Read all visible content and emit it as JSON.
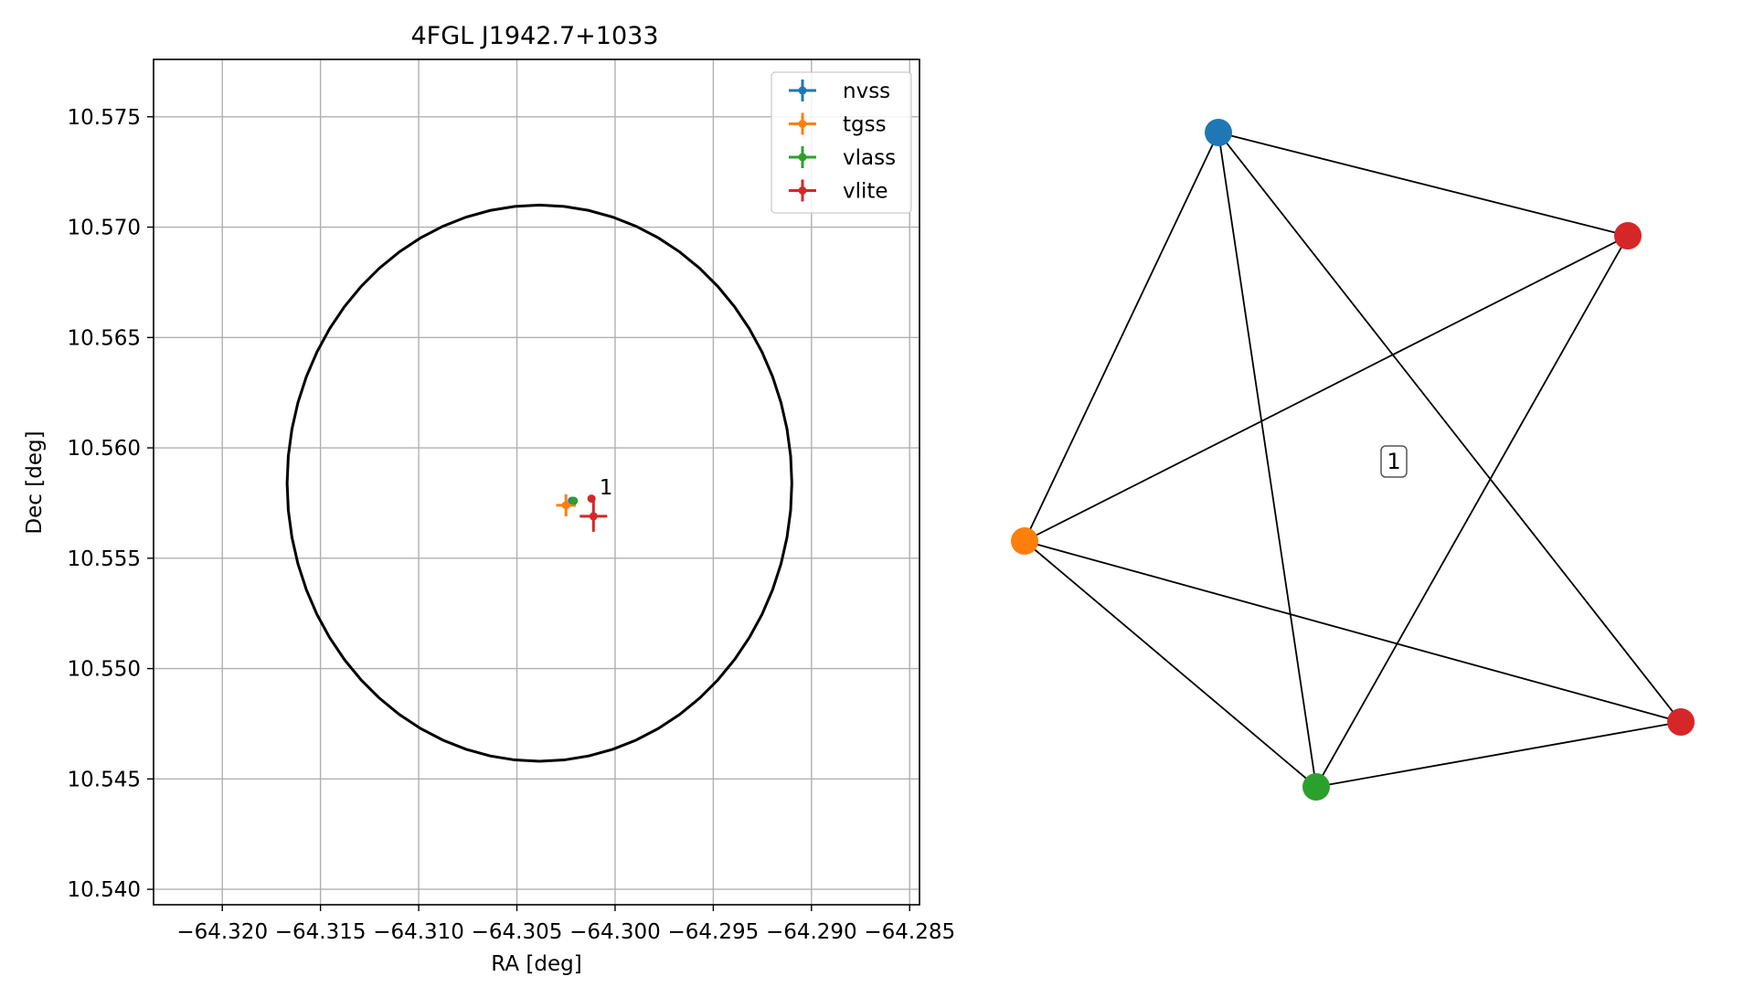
{
  "chart_data": [
    {
      "type": "scatter",
      "title": "4FGL J1942.7+1033",
      "xlabel": "RA [deg]",
      "ylabel": "Dec [deg]",
      "xlim": [
        -64.3235,
        -64.2845
      ],
      "ylim": [
        10.5393,
        10.5776
      ],
      "xticks": [
        -64.32,
        -64.315,
        -64.31,
        -64.305,
        -64.3,
        -64.295,
        -64.29,
        -64.285
      ],
      "xtick_labels": [
        "−64.320",
        "−64.315",
        "−64.310",
        "−64.305",
        "−64.300",
        "−64.295",
        "−64.290",
        "−64.285"
      ],
      "yticks": [
        10.54,
        10.545,
        10.55,
        10.555,
        10.56,
        10.565,
        10.57,
        10.575
      ],
      "ytick_labels": [
        "10.540",
        "10.545",
        "10.550",
        "10.555",
        "10.560",
        "10.565",
        "10.570",
        "10.575"
      ],
      "grid": true,
      "legend_position": "top-right",
      "ellipse": {
        "center_x": -64.30385,
        "center_y": 10.5584,
        "semi_x": 0.01285,
        "semi_y": 0.0126,
        "color": "#000000"
      },
      "series": [
        {
          "name": "nvss",
          "color": "#1f77b4",
          "x": -64.3022,
          "y": 10.5576,
          "xerr": 0.0001,
          "yerr": 0.0001
        },
        {
          "name": "tgss",
          "color": "#ff7f0e",
          "x": -64.3025,
          "y": 10.5574,
          "xerr": 0.0005,
          "yerr": 0.0005
        },
        {
          "name": "vlass",
          "color": "#2ca02c",
          "x": -64.3021,
          "y": 10.5576,
          "xerr": 0.0001,
          "yerr": 0.0001
        },
        {
          "name": "vlite",
          "color": "#d62728",
          "x": -64.3011,
          "y": 10.5569,
          "xerr": 0.0007,
          "yerr": 0.0007
        }
      ],
      "extra_points": [
        {
          "x": -64.3012,
          "y": 10.5577,
          "color": "#d62728"
        }
      ],
      "annotations": [
        {
          "text": "1",
          "x": -64.3008,
          "y": 10.5579
        }
      ]
    },
    {
      "type": "network",
      "nodes": [
        {
          "id": "nvss",
          "color": "#1f77b4"
        },
        {
          "id": "vlite_a",
          "color": "#d62728"
        },
        {
          "id": "tgss",
          "color": "#ff7f0e"
        },
        {
          "id": "vlite_b",
          "color": "#d62728"
        },
        {
          "id": "vlass",
          "color": "#2ca02c"
        }
      ],
      "edges": [
        [
          "nvss",
          "vlite_a"
        ],
        [
          "nvss",
          "tgss"
        ],
        [
          "nvss",
          "vlass"
        ],
        [
          "nvss",
          "vlite_b"
        ],
        [
          "vlite_a",
          "tgss"
        ],
        [
          "vlite_a",
          "vlass"
        ],
        [
          "tgss",
          "vlass"
        ],
        [
          "tgss",
          "vlite_b"
        ],
        [
          "vlass",
          "vlite_b"
        ]
      ],
      "label": "1"
    }
  ]
}
